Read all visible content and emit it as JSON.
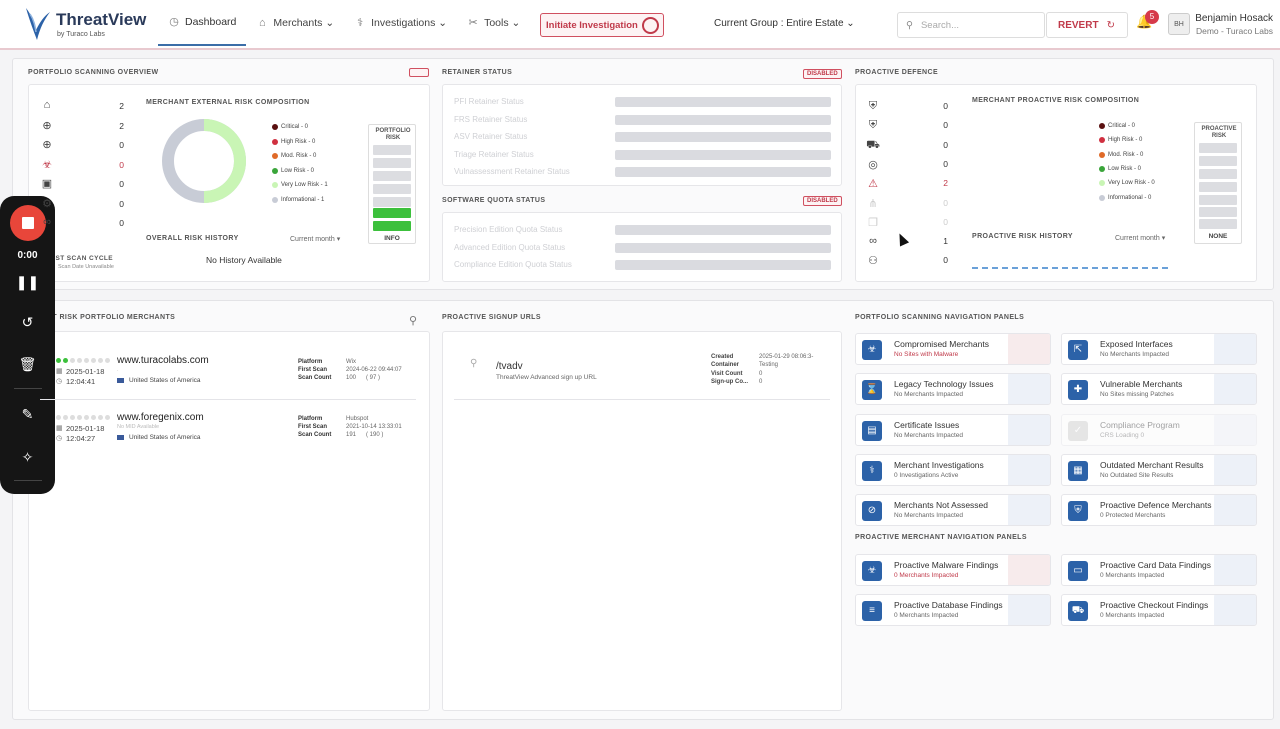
{
  "app": {
    "title": "ThreatView",
    "subtitle": "by Turaco Labs"
  },
  "nav": [
    {
      "label": "Dashboard"
    },
    {
      "label": "Merchants"
    },
    {
      "label": "Investigations"
    },
    {
      "label": "Tools"
    }
  ],
  "header": {
    "initiate": "Initiate Investigation",
    "group": "Current Group : Entire Estate",
    "search_placeholder": "Search...",
    "revert": "REVERT",
    "notifications": "5",
    "avatar": "BH",
    "user_name": "Benjamin Hosack",
    "user_org": "Demo - Turaco Labs"
  },
  "scanning": {
    "title": "PORTFOLIO SCANNING OVERVIEW",
    "counts": [
      "2",
      "2",
      "0",
      "0",
      "0",
      "0",
      "0"
    ],
    "composition_title": "MERCHANT EXTERNAL RISK COMPOSITION",
    "legend": [
      {
        "label": "Critical - 0",
        "color": "#5a1010"
      },
      {
        "label": "High Risk - 0",
        "color": "#d03040"
      },
      {
        "label": "Mod. Risk - 0",
        "color": "#e06a28"
      },
      {
        "label": "Low Risk - 0",
        "color": "#3aa53a"
      },
      {
        "label": "Very Low Risk - 1",
        "color": "#c9f5b5"
      },
      {
        "label": "Informational - 1",
        "color": "#c8ccd6"
      }
    ],
    "portfolio_risk": "PORTFOLIO RISK",
    "risk_value": "INFO",
    "last_scan": "LAST SCAN CYCLE",
    "last_scan_value": "Scan Date Unavailable",
    "history_title": "OVERALL RISK HISTORY",
    "history_period": "Current month",
    "no_history": "No History Available"
  },
  "retainer": {
    "title": "RETAINER STATUS",
    "badge": "DISABLED",
    "rows": [
      "PFI Retainer Status",
      "FRS Retainer Status",
      "ASV Retainer Status",
      "Triage Retainer Status",
      "Vulnassessment Retainer Status"
    ]
  },
  "quota": {
    "title": "SOFTWARE QUOTA STATUS",
    "badge": "DISABLED",
    "rows": [
      "Precision Edition Quota Status",
      "Advanced Edition Quota Status",
      "Compliance Edition Quota Status"
    ]
  },
  "proactive": {
    "title": "PROACTIVE DEFENCE",
    "counts": [
      "0",
      "0",
      "0",
      "0",
      "2",
      "0",
      "0",
      "1",
      "0"
    ],
    "composition_title": "MERCHANT PROACTIVE RISK COMPOSITION",
    "legend": [
      {
        "label": "Critical - 0",
        "color": "#5a1010"
      },
      {
        "label": "High Risk - 0",
        "color": "#d03040"
      },
      {
        "label": "Mod. Risk - 0",
        "color": "#e06a28"
      },
      {
        "label": "Low Risk - 0",
        "color": "#3aa53a"
      },
      {
        "label": "Very Low Risk - 0",
        "color": "#c9f5b5"
      },
      {
        "label": "Informational - 0",
        "color": "#c8ccd6"
      }
    ],
    "risk_title": "PROACTIVE RISK",
    "risk_value": "NONE",
    "history_title": "PROACTIVE RISK HISTORY",
    "history_period": "Current month"
  },
  "merchants": {
    "title": "LATEST RISK PORTFOLIO MERCHANTS",
    "items": [
      {
        "domain": "www.turacolabs.com",
        "date": "2025-01-18",
        "time": "12:04:41",
        "country": "United States of America",
        "platform": "Wix",
        "first_scan": "2024-06-22 09:44:07",
        "scan_count": "100",
        "scan_count2": "( 97 )",
        "sub": "."
      },
      {
        "domain": "www.foregenix.com",
        "date": "2025-01-18",
        "time": "12:04:27",
        "country": "United States of America",
        "platform": "Hubspot",
        "first_scan": "2021-10-14 13:33:01",
        "scan_count": "191",
        "scan_count2": "( 190 )",
        "sub": "No MID Available"
      }
    ],
    "labels": {
      "platform": "Platform",
      "first_scan": "First Scan",
      "scan_count": "Scan Count"
    }
  },
  "signup": {
    "title": "PROACTIVE SIGNUP URLS",
    "url": "/tvadv",
    "desc": "ThreatView Advanced sign up URL",
    "created_label": "Created",
    "created": "2025-01-29 08:06:3-",
    "container_label": "Container",
    "container": "Testing",
    "visit_label": "Visit Count",
    "visit": "0",
    "signup_label": "Sign-up Co...",
    "signup": "0"
  },
  "scan_nav": {
    "title": "PORTFOLIO SCANNING NAVIGATION PANELS",
    "items": [
      {
        "title": "Compromised Merchants",
        "sub": "No Sites with Malware",
        "alert": true,
        "icon": "biohazard-icon",
        "glyph": "☣"
      },
      {
        "title": "Exposed Interfaces",
        "sub": "No Merchants Impacted",
        "icon": "interface-icon",
        "glyph": "⇱"
      },
      {
        "title": "Legacy Technology Issues",
        "sub": "No Merchants Impacted",
        "icon": "legacy-icon",
        "glyph": "⌛"
      },
      {
        "title": "Vulnerable Merchants",
        "sub": "No Sites missing Patches",
        "icon": "patch-icon",
        "glyph": "✚"
      },
      {
        "title": "Certificate Issues",
        "sub": "No Merchants Impacted",
        "icon": "certificate-icon",
        "glyph": "▤"
      },
      {
        "title": "Compliance Program",
        "sub": "CRS Loading 0",
        "disabled": true,
        "icon": "compliance-icon",
        "glyph": "✓"
      },
      {
        "title": "Merchant Investigations",
        "sub": "0 Investigations Active",
        "icon": "stethoscope-icon",
        "glyph": "⚕"
      },
      {
        "title": "Outdated Merchant Results",
        "sub": "No Outdated Site Results",
        "icon": "clipboard-icon",
        "glyph": "▦"
      },
      {
        "title": "Merchants Not Assessed",
        "sub": "No Merchants Impacted",
        "icon": "eye-slash-icon",
        "glyph": "⊘"
      },
      {
        "title": "Proactive Defence Merchants",
        "sub": "0 Protected Merchants",
        "icon": "shield-icon",
        "glyph": "⛨"
      }
    ]
  },
  "proactive_nav": {
    "title": "PROACTIVE MERCHANT NAVIGATION PANELS",
    "items": [
      {
        "title": "Proactive Malware Findings",
        "sub": "0 Merchants Impacted",
        "alert": true,
        "icon": "biohazard-icon",
        "glyph": "☣"
      },
      {
        "title": "Proactive Card Data Findings",
        "sub": "0 Merchants Impacted",
        "icon": "card-icon",
        "glyph": "▭"
      },
      {
        "title": "Proactive Database Findings",
        "sub": "0 Merchants Impacted",
        "icon": "database-icon",
        "glyph": "≡"
      },
      {
        "title": "Proactive Checkout Findings",
        "sub": "0 Merchants Impacted",
        "icon": "cart-icon",
        "glyph": "⛟"
      }
    ]
  },
  "recorder": {
    "time": "0:00"
  }
}
